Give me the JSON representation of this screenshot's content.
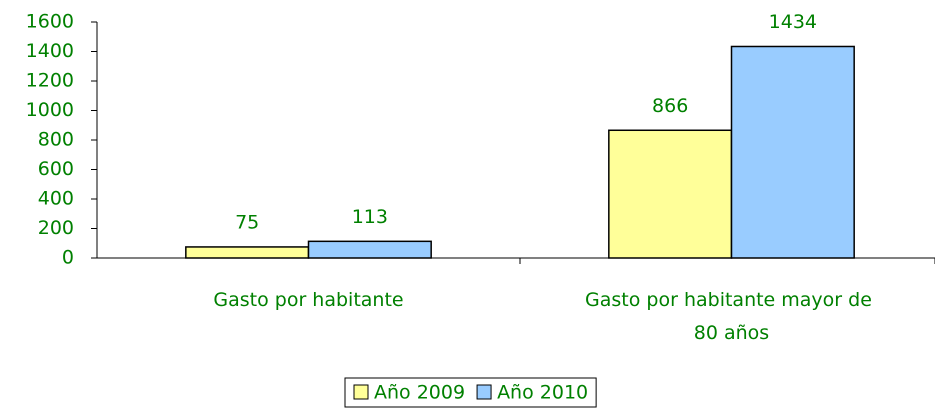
{
  "chart_data": {
    "type": "bar",
    "categories": [
      "Gasto por habitante",
      "Gasto por habitante mayor de 80 años"
    ],
    "series": [
      {
        "name": "Año 2009",
        "color": "#ffff99",
        "values": [
          75,
          866
        ]
      },
      {
        "name": "Año 2010",
        "color": "#99ccff",
        "values": [
          113,
          1434
        ]
      }
    ],
    "ylim": [
      0,
      1600
    ],
    "yticks": [
      0,
      200,
      400,
      600,
      800,
      1000,
      1200,
      1400,
      1600
    ],
    "legend": "bottom"
  }
}
